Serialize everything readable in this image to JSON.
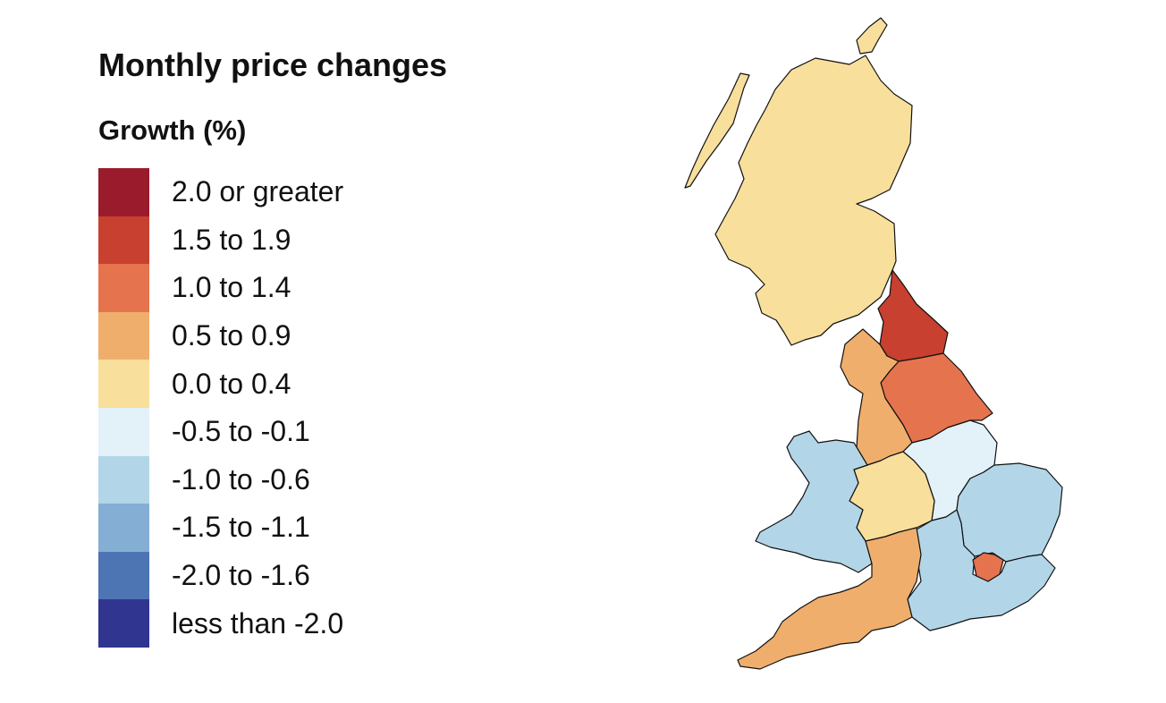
{
  "title": "Monthly price changes",
  "legend": {
    "title": "Growth (%)",
    "items": [
      {
        "label": "2.0 or greater",
        "color": "#9a1b2b"
      },
      {
        "label": "1.5 to 1.9",
        "color": "#c8402f"
      },
      {
        "label": "1.0 to 1.4",
        "color": "#e5734e"
      },
      {
        "label": "0.5 to 0.9",
        "color": "#f0ae6c"
      },
      {
        "label": "0.0 to 0.4",
        "color": "#f8df9c"
      },
      {
        "label": "-0.5 to -0.1",
        "color": "#e3f1f8"
      },
      {
        "label": "-1.0 to -0.6",
        "color": "#b2d6e8"
      },
      {
        "label": "-1.5 to -1.1",
        "color": "#84aed3"
      },
      {
        "label": "-2.0 to -1.6",
        "color": "#4d74b3"
      },
      {
        "label": "less than -2.0",
        "color": "#303590"
      }
    ]
  },
  "regions": [
    {
      "name": "Scotland",
      "band": "0.0 to 0.4"
    },
    {
      "name": "North East",
      "band": "1.5 to 1.9"
    },
    {
      "name": "Yorkshire and The Humber",
      "band": "1.0 to 1.4"
    },
    {
      "name": "North West",
      "band": "0.5 to 0.9"
    },
    {
      "name": "East Midlands",
      "band": "-0.5 to -0.1"
    },
    {
      "name": "West Midlands",
      "band": "0.0 to 0.4"
    },
    {
      "name": "Wales",
      "band": "-1.0 to -0.6"
    },
    {
      "name": "East of England",
      "band": "-1.0 to -0.6"
    },
    {
      "name": "London",
      "band": "1.0 to 1.4"
    },
    {
      "name": "South East",
      "band": "-1.0 to -0.6"
    },
    {
      "name": "South West",
      "band": "0.5 to 0.9"
    }
  ]
}
